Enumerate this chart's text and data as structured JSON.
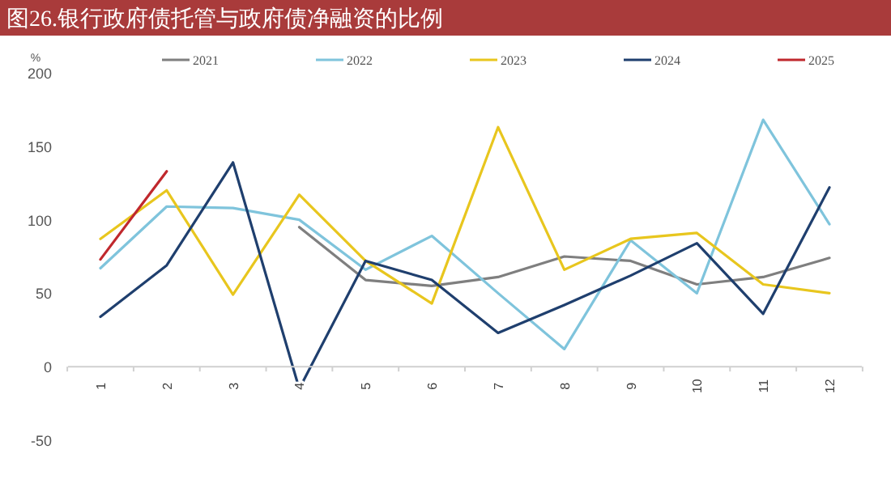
{
  "chart_data": {
    "type": "line",
    "title": "图26.银行政府债托管与政府债净融资的比例",
    "ylabel": "%",
    "categories": [
      "1",
      "2",
      "3",
      "4",
      "5",
      "6",
      "7",
      "8",
      "9",
      "10",
      "11",
      "12"
    ],
    "ylim": [
      -50,
      200
    ],
    "yticks": [
      -50,
      0,
      50,
      100,
      150,
      200
    ],
    "grid": false,
    "legend": "top",
    "marker": "none",
    "line_style": "solid",
    "series": [
      {
        "name": "2021",
        "color": "#7f7f7f",
        "values": [
          null,
          null,
          null,
          95,
          59,
          55,
          61,
          75,
          72,
          56,
          61,
          74
        ]
      },
      {
        "name": "2022",
        "color": "#7fc4dc",
        "values": [
          67,
          109,
          108,
          100,
          66,
          89,
          50,
          12,
          86,
          50,
          168,
          97
        ]
      },
      {
        "name": "2023",
        "color": "#e8c61e",
        "values": [
          87,
          120,
          49,
          117,
          72,
          43,
          163,
          66,
          87,
          91,
          56,
          50
        ]
      },
      {
        "name": "2024",
        "color": "#1f3f6e",
        "values": [
          34,
          69,
          139,
          -15,
          72,
          59,
          23,
          42,
          62,
          84,
          36,
          122
        ]
      },
      {
        "name": "2025",
        "color": "#c0282d",
        "values": [
          73,
          133,
          null,
          null,
          null,
          null,
          null,
          null,
          null,
          null,
          null,
          null
        ]
      }
    ]
  }
}
